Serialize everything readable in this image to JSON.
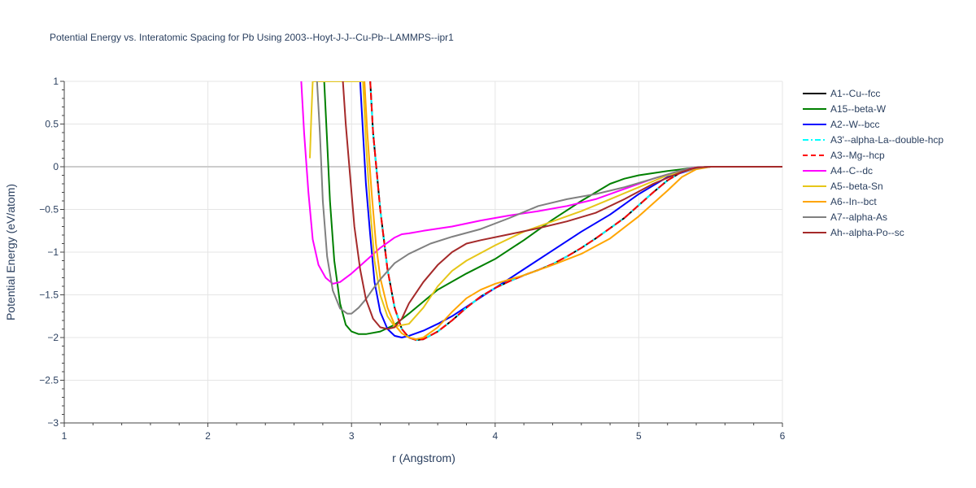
{
  "chart_data": {
    "type": "line",
    "title": "Potential Energy vs. Interatomic Spacing for Pb Using 2003--Hoyt-J-J--Cu-Pb--LAMMPS--ipr1",
    "xlabel": "r (Angstrom)",
    "ylabel": "Potential Energy (eV/atom)",
    "xlim": [
      1,
      6
    ],
    "ylim": [
      -3,
      1
    ],
    "xticks": [
      1,
      2,
      3,
      4,
      5,
      6
    ],
    "xtick_labels": [
      "1",
      "2",
      "3",
      "4",
      "5",
      "6"
    ],
    "yticks": [
      1,
      0.5,
      0,
      -0.5,
      -1,
      -1.5,
      -2,
      -2.5,
      -3
    ],
    "ytick_labels": [
      "1",
      "0.5",
      "0",
      "−0.5",
      "−1",
      "−1.5",
      "−2",
      "−2.5",
      "−3"
    ],
    "grid": true,
    "legend_position": "right",
    "series": [
      {
        "name": "A1--Cu--fcc",
        "color": "#000000",
        "dash": "solid",
        "x": [
          3.13,
          3.15,
          3.2,
          3.25,
          3.3,
          3.35,
          3.4,
          3.45,
          3.5,
          3.6,
          3.7,
          3.8,
          3.9,
          4.0,
          4.1,
          4.2,
          4.3,
          4.4,
          4.5,
          4.6,
          4.7,
          4.8,
          4.9,
          5.0,
          5.1,
          5.2,
          5.3,
          5.4,
          5.5,
          6.0
        ],
        "y": [
          1.0,
          0.4,
          -0.5,
          -1.2,
          -1.65,
          -1.9,
          -2.0,
          -2.03,
          -2.02,
          -1.93,
          -1.8,
          -1.65,
          -1.52,
          -1.42,
          -1.34,
          -1.27,
          -1.21,
          -1.14,
          -1.05,
          -0.95,
          -0.84,
          -0.72,
          -0.6,
          -0.45,
          -0.3,
          -0.16,
          -0.06,
          -0.01,
          0.0,
          0.0
        ]
      },
      {
        "name": "A15--beta-W",
        "color": "#008000",
        "dash": "solid",
        "x": [
          2.81,
          2.83,
          2.85,
          2.88,
          2.92,
          2.96,
          3.0,
          3.05,
          3.1,
          3.2,
          3.3,
          3.4,
          3.5,
          3.6,
          3.8,
          4.0,
          4.2,
          4.4,
          4.6,
          4.8,
          4.9,
          5.0,
          5.2,
          5.4,
          5.5,
          6.0
        ],
        "y": [
          1.0,
          0.3,
          -0.4,
          -1.1,
          -1.6,
          -1.85,
          -1.93,
          -1.96,
          -1.96,
          -1.93,
          -1.85,
          -1.72,
          -1.58,
          -1.44,
          -1.25,
          -1.08,
          -0.86,
          -0.62,
          -0.4,
          -0.2,
          -0.14,
          -0.1,
          -0.05,
          -0.01,
          0.0,
          0.0
        ]
      },
      {
        "name": "A2--W--bcc",
        "color": "#0000ff",
        "dash": "solid",
        "x": [
          3.06,
          3.08,
          3.1,
          3.13,
          3.16,
          3.2,
          3.25,
          3.3,
          3.35,
          3.4,
          3.5,
          3.6,
          3.7,
          3.8,
          3.9,
          4.0,
          4.2,
          4.4,
          4.6,
          4.8,
          5.0,
          5.2,
          5.4,
          5.5,
          6.0
        ],
        "y": [
          1.0,
          0.4,
          -0.2,
          -0.8,
          -1.35,
          -1.7,
          -1.9,
          -1.98,
          -2.0,
          -1.98,
          -1.92,
          -1.84,
          -1.75,
          -1.64,
          -1.53,
          -1.42,
          -1.2,
          -0.98,
          -0.76,
          -0.56,
          -0.32,
          -0.12,
          -0.02,
          0.0,
          0.0
        ]
      },
      {
        "name": "A3'--alpha-La--double-hcp",
        "color": "#00ffff",
        "dash": "dashdot",
        "x": [
          3.13,
          3.15,
          3.2,
          3.25,
          3.3,
          3.35,
          3.4,
          3.45,
          3.5,
          3.6,
          3.7,
          3.8,
          3.9,
          4.0,
          4.1,
          4.2,
          4.3,
          4.4,
          4.5,
          4.6,
          4.7,
          4.8,
          4.9,
          5.0,
          5.1,
          5.2,
          5.3,
          5.4,
          5.5,
          6.0
        ],
        "y": [
          1.0,
          0.4,
          -0.5,
          -1.2,
          -1.65,
          -1.9,
          -2.0,
          -2.03,
          -2.02,
          -1.93,
          -1.8,
          -1.65,
          -1.52,
          -1.42,
          -1.34,
          -1.27,
          -1.21,
          -1.14,
          -1.05,
          -0.95,
          -0.84,
          -0.72,
          -0.6,
          -0.45,
          -0.3,
          -0.16,
          -0.06,
          -0.01,
          0.0,
          0.0
        ]
      },
      {
        "name": "A3--Mg--hcp",
        "color": "#ff0000",
        "dash": "dash",
        "x": [
          3.13,
          3.15,
          3.2,
          3.25,
          3.3,
          3.35,
          3.4,
          3.45,
          3.5,
          3.6,
          3.7,
          3.8,
          3.9,
          4.0,
          4.1,
          4.2,
          4.3,
          4.4,
          4.5,
          4.6,
          4.7,
          4.8,
          4.9,
          5.0,
          5.1,
          5.2,
          5.3,
          5.4,
          5.5,
          6.0
        ],
        "y": [
          1.0,
          0.4,
          -0.5,
          -1.2,
          -1.65,
          -1.9,
          -2.0,
          -2.03,
          -2.02,
          -1.93,
          -1.8,
          -1.65,
          -1.52,
          -1.42,
          -1.34,
          -1.27,
          -1.21,
          -1.14,
          -1.05,
          -0.95,
          -0.84,
          -0.72,
          -0.6,
          -0.45,
          -0.3,
          -0.16,
          -0.06,
          -0.01,
          0.0,
          0.0
        ]
      },
      {
        "name": "A4--C--dc",
        "color": "#ff00ff",
        "dash": "solid",
        "x": [
          2.65,
          2.67,
          2.7,
          2.73,
          2.77,
          2.82,
          2.87,
          2.92,
          3.0,
          3.1,
          3.2,
          3.3,
          3.35,
          3.4,
          3.5,
          3.7,
          3.9,
          4.1,
          4.3,
          4.5,
          4.7,
          4.9,
          5.1,
          5.3,
          5.4,
          5.5,
          6.0
        ],
        "y": [
          1.0,
          0.4,
          -0.3,
          -0.85,
          -1.15,
          -1.3,
          -1.37,
          -1.35,
          -1.25,
          -1.1,
          -0.95,
          -0.83,
          -0.79,
          -0.78,
          -0.75,
          -0.7,
          -0.63,
          -0.57,
          -0.52,
          -0.46,
          -0.38,
          -0.26,
          -0.14,
          -0.04,
          -0.01,
          0.0,
          0.0
        ]
      },
      {
        "name": "A5--beta-Sn",
        "color": "#e6c619",
        "dash": "solid",
        "x": [
          2.71,
          2.72,
          2.73,
          3.08,
          3.1,
          3.13,
          3.16,
          3.2,
          3.25,
          3.3,
          3.4,
          3.5,
          3.6,
          3.7,
          3.8,
          4.0,
          4.2,
          4.4,
          4.6,
          4.8,
          5.0,
          5.2,
          5.4,
          5.5,
          6.0
        ],
        "y": [
          0.1,
          0.6,
          1.0,
          1.0,
          0.3,
          -0.5,
          -1.1,
          -1.5,
          -1.75,
          -1.87,
          -1.84,
          -1.65,
          -1.4,
          -1.22,
          -1.1,
          -0.92,
          -0.76,
          -0.64,
          -0.52,
          -0.38,
          -0.24,
          -0.1,
          -0.02,
          0.0,
          0.0
        ]
      },
      {
        "name": "A6--In--bct",
        "color": "#ffa500",
        "dash": "solid",
        "x": [
          3.09,
          3.11,
          3.14,
          3.17,
          3.2,
          3.25,
          3.3,
          3.35,
          3.4,
          3.45,
          3.5,
          3.6,
          3.7,
          3.8,
          3.9,
          4.0,
          4.2,
          4.4,
          4.6,
          4.8,
          5.0,
          5.2,
          5.3,
          5.4,
          5.5,
          6.0
        ],
        "y": [
          1.0,
          0.4,
          -0.3,
          -0.9,
          -1.3,
          -1.65,
          -1.85,
          -1.95,
          -2.0,
          -2.02,
          -2.0,
          -1.88,
          -1.7,
          -1.54,
          -1.44,
          -1.37,
          -1.27,
          -1.15,
          -1.02,
          -0.84,
          -0.58,
          -0.28,
          -0.12,
          -0.03,
          0.0,
          0.0
        ]
      },
      {
        "name": "A7--alpha-As",
        "color": "#808080",
        "dash": "solid",
        "x": [
          2.76,
          2.78,
          2.8,
          2.83,
          2.87,
          2.92,
          2.97,
          3.0,
          3.05,
          3.1,
          3.15,
          3.2,
          3.3,
          3.4,
          3.55,
          3.7,
          3.9,
          4.1,
          4.3,
          4.5,
          4.7,
          4.9,
          5.1,
          5.3,
          5.45,
          5.5,
          6.0
        ],
        "y": [
          1.0,
          0.4,
          -0.4,
          -1.05,
          -1.45,
          -1.66,
          -1.72,
          -1.72,
          -1.65,
          -1.55,
          -1.43,
          -1.32,
          -1.13,
          -1.02,
          -0.9,
          -0.82,
          -0.73,
          -0.6,
          -0.46,
          -0.38,
          -0.32,
          -0.24,
          -0.14,
          -0.04,
          -0.005,
          0.0,
          0.0
        ]
      },
      {
        "name": "Ah--alpha-Po--sc",
        "color": "#a52a2a",
        "dash": "solid",
        "x": [
          2.94,
          2.96,
          2.99,
          3.02,
          3.06,
          3.1,
          3.15,
          3.2,
          3.25,
          3.3,
          3.35,
          3.4,
          3.5,
          3.6,
          3.7,
          3.8,
          3.9,
          4.1,
          4.3,
          4.5,
          4.7,
          4.9,
          5.1,
          5.3,
          5.4,
          5.5,
          6.0
        ],
        "y": [
          1.0,
          0.5,
          -0.1,
          -0.7,
          -1.2,
          -1.55,
          -1.78,
          -1.88,
          -1.9,
          -1.88,
          -1.78,
          -1.6,
          -1.35,
          -1.15,
          -1.0,
          -0.9,
          -0.86,
          -0.79,
          -0.72,
          -0.64,
          -0.54,
          -0.38,
          -0.2,
          -0.06,
          -0.01,
          0.0,
          0.0
        ]
      }
    ]
  }
}
